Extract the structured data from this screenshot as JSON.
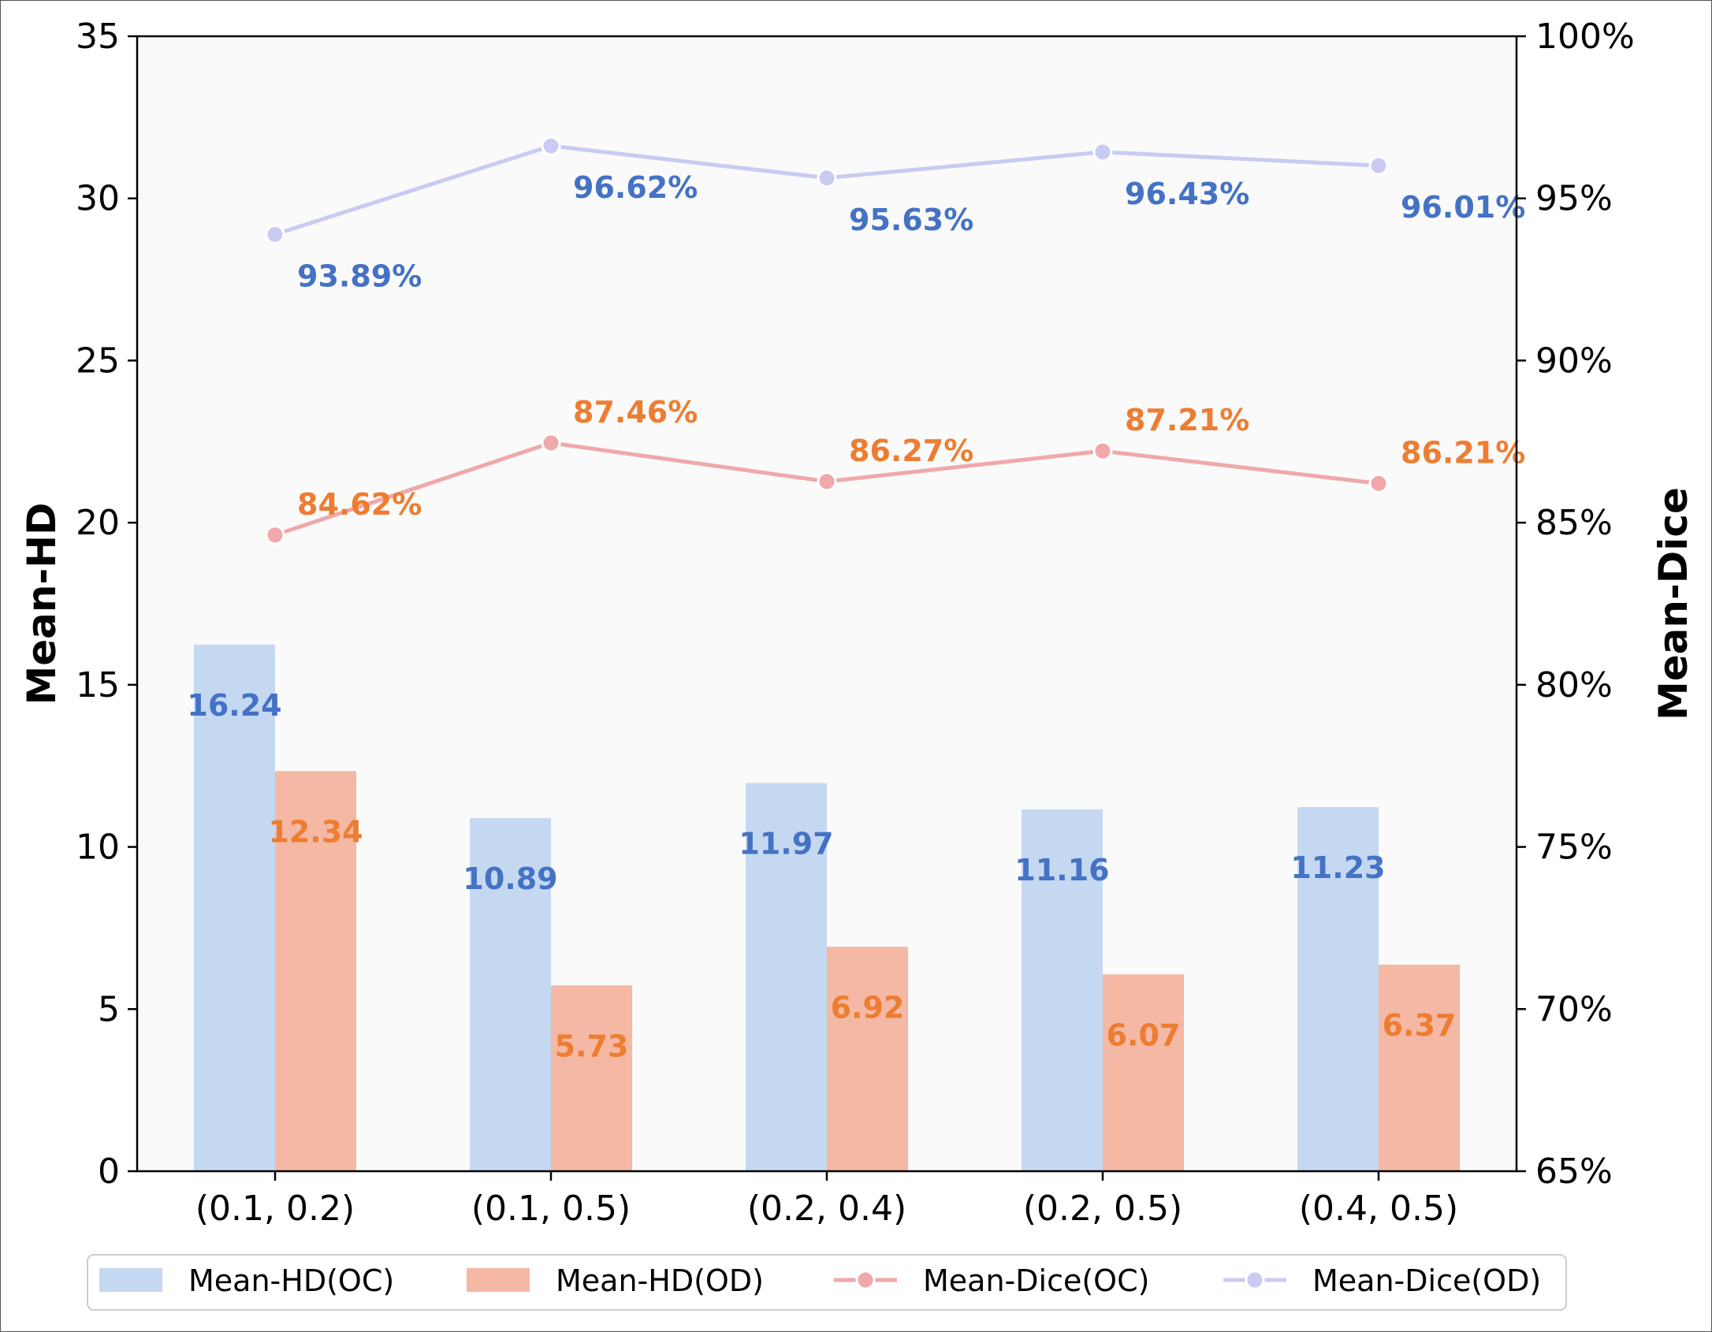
{
  "chart_data": {
    "type": "bar",
    "categories": [
      "(0.1, 0.2)",
      "(0.1, 0.5)",
      "(0.2, 0.4)",
      "(0.2, 0.5)",
      "(0.4, 0.5)"
    ],
    "series": [
      {
        "name": "Mean-HD(OC)",
        "kind": "bar",
        "axis": "left",
        "color": "#c5d8f1",
        "label_color": "#4472c4",
        "values": [
          16.24,
          10.89,
          11.97,
          11.16,
          11.23
        ],
        "labels": [
          "16.24",
          "10.89",
          "11.97",
          "11.16",
          "11.23"
        ]
      },
      {
        "name": "Mean-HD(OD)",
        "kind": "bar",
        "axis": "left",
        "color": "#f4b8a4",
        "label_color": "#ed7d31",
        "values": [
          12.34,
          5.73,
          6.92,
          6.07,
          6.37
        ],
        "labels": [
          "12.34",
          "5.73",
          "6.92",
          "6.07",
          "6.37"
        ]
      },
      {
        "name": "Mean-Dice(OC)",
        "kind": "line",
        "axis": "right",
        "color": "#f0a8aa",
        "label_color": "#ed7d31",
        "values": [
          84.62,
          87.46,
          86.27,
          87.21,
          86.21
        ],
        "labels": [
          "84.62%",
          "87.46%",
          "86.27%",
          "87.21%",
          "86.21%"
        ]
      },
      {
        "name": "Mean-Dice(OD)",
        "kind": "line",
        "axis": "right",
        "color": "#c9cbf3",
        "label_color": "#4472c4",
        "values": [
          93.89,
          96.62,
          95.63,
          96.43,
          96.01
        ],
        "labels": [
          "93.89%",
          "96.62%",
          "95.63%",
          "96.43%",
          "96.01%"
        ]
      }
    ],
    "ylabel": "Mean-HD",
    "y2label": "Mean-Dice",
    "ylim": [
      0,
      35
    ],
    "y2lim": [
      65,
      100
    ],
    "yticks": [
      "0",
      "5",
      "10",
      "15",
      "20",
      "25",
      "30",
      "35"
    ],
    "y2ticks": [
      "65%",
      "70%",
      "75%",
      "80%",
      "85%",
      "90%",
      "95%",
      "100%"
    ],
    "legend_position": "bottom",
    "grid": false
  }
}
